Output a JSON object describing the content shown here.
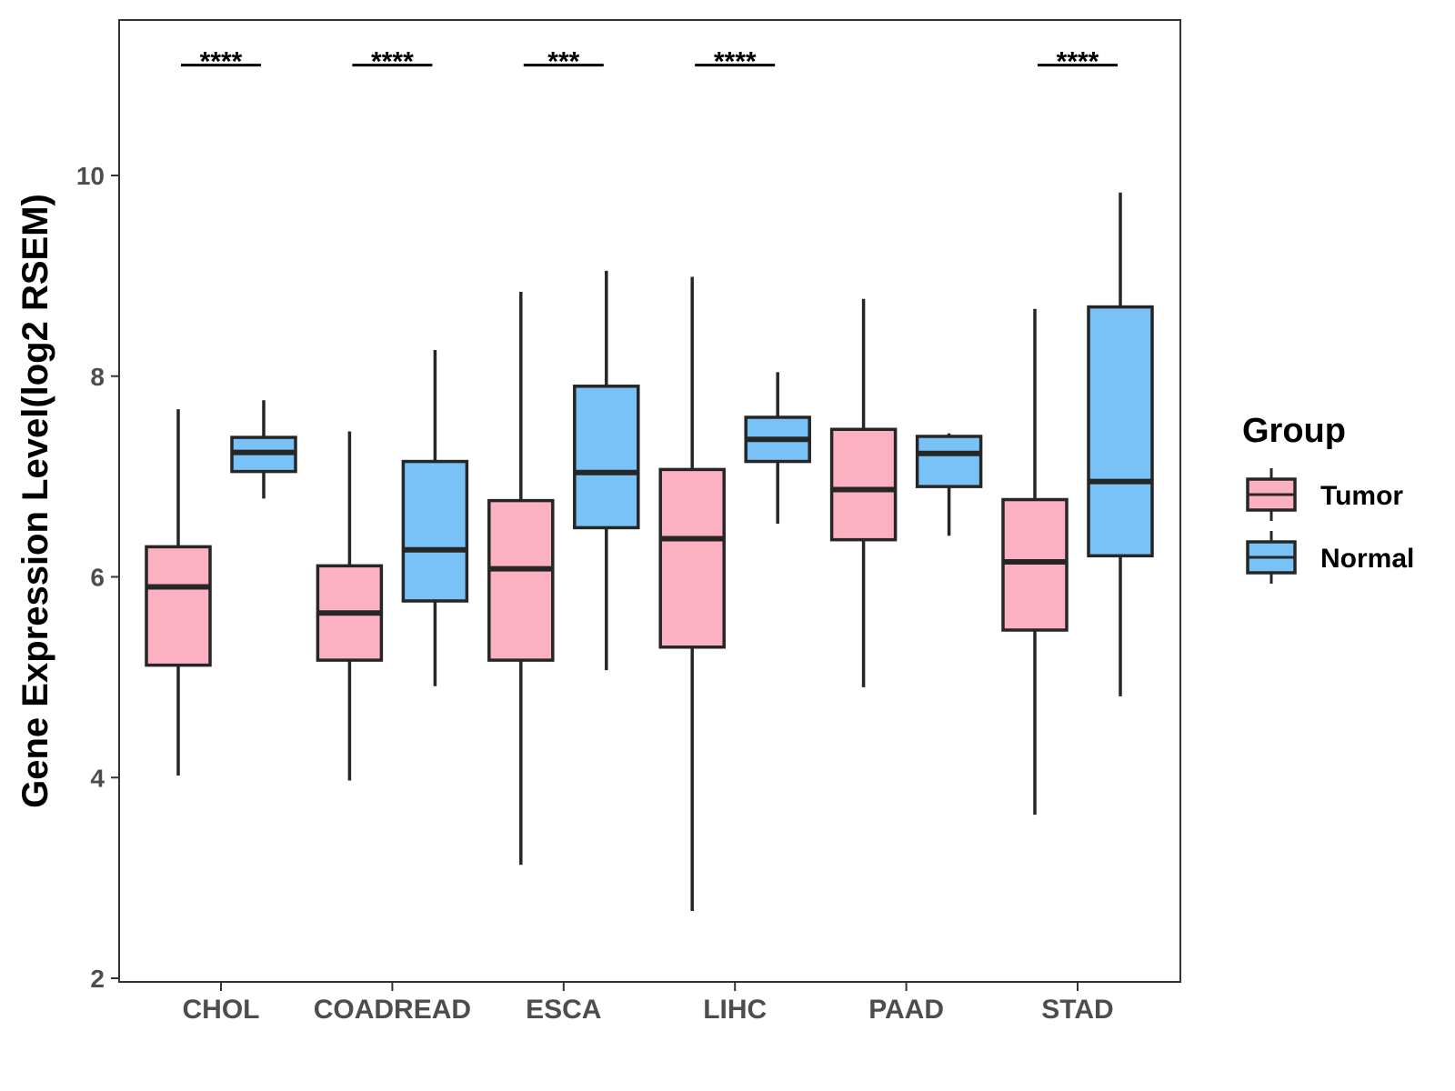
{
  "chart_data": {
    "type": "boxplot",
    "ylabel": "Gene Expression Level(log2 RSEM)",
    "xlabel": "",
    "ylim": [
      1.95,
      11.6
    ],
    "yticks": [
      2,
      4,
      6,
      8,
      10
    ],
    "ytick_labels": [
      "2",
      "4",
      "6",
      "8",
      "10"
    ],
    "categories": [
      "CHOL",
      "COADREAD",
      "ESCA",
      "LIHC",
      "PAAD",
      "STAD"
    ],
    "legend": {
      "title": "Group",
      "position": "right",
      "entries": [
        {
          "name": "Tumor",
          "color": "#FCB1C3"
        },
        {
          "name": "Normal",
          "color": "#79C2F8"
        }
      ]
    },
    "series": [
      {
        "name": "Tumor",
        "color": "#FCB1C3",
        "boxes": [
          {
            "min": 4.02,
            "q1": 5.12,
            "median": 5.9,
            "q3": 6.3,
            "max": 7.67
          },
          {
            "min": 3.97,
            "q1": 5.17,
            "median": 5.64,
            "q3": 6.11,
            "max": 7.45
          },
          {
            "min": 3.13,
            "q1": 5.17,
            "median": 6.08,
            "q3": 6.76,
            "max": 8.84
          },
          {
            "min": 2.67,
            "q1": 5.3,
            "median": 6.38,
            "q3": 7.07,
            "max": 8.99
          },
          {
            "min": 4.9,
            "q1": 6.37,
            "median": 6.87,
            "q3": 7.47,
            "max": 8.77
          },
          {
            "min": 3.63,
            "q1": 5.47,
            "median": 6.15,
            "q3": 6.77,
            "max": 8.67
          }
        ]
      },
      {
        "name": "Normal",
        "color": "#79C2F8",
        "boxes": [
          {
            "min": 6.78,
            "q1": 7.05,
            "median": 7.24,
            "q3": 7.39,
            "max": 7.76
          },
          {
            "min": 4.91,
            "q1": 5.76,
            "median": 6.27,
            "q3": 7.15,
            "max": 8.26
          },
          {
            "min": 5.07,
            "q1": 6.49,
            "median": 7.04,
            "q3": 7.9,
            "max": 9.05
          },
          {
            "min": 6.53,
            "q1": 7.15,
            "median": 7.37,
            "q3": 7.59,
            "max": 8.04
          },
          {
            "min": 6.41,
            "q1": 6.9,
            "median": 7.23,
            "q3": 7.4,
            "max": 7.43
          },
          {
            "min": 4.81,
            "q1": 6.21,
            "median": 6.95,
            "q3": 8.69,
            "max": 9.83
          }
        ]
      }
    ],
    "significance": [
      {
        "category": "CHOL",
        "label": "****"
      },
      {
        "category": "COADREAD",
        "label": "****"
      },
      {
        "category": "ESCA",
        "label": "***"
      },
      {
        "category": "LIHC",
        "label": "****"
      },
      {
        "category": "PAAD",
        "label": ""
      },
      {
        "category": "STAD",
        "label": "****"
      }
    ],
    "significance_y": 11.1,
    "grid": false
  }
}
